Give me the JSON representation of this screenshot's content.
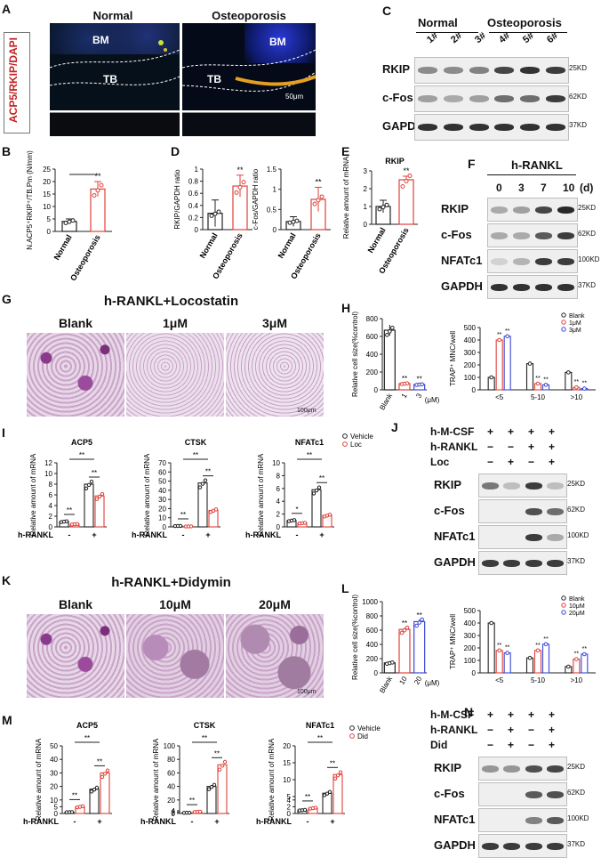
{
  "panel_letters": [
    "A",
    "B",
    "C",
    "D",
    "E",
    "F",
    "G",
    "H",
    "I",
    "J",
    "K",
    "L",
    "M",
    "N"
  ],
  "A": {
    "side_label": "ACP5/RKIP/DAPI",
    "normal": "Normal",
    "osteo": "Osteoporosis",
    "bm": "BM",
    "tb": "TB",
    "scale": "50μm"
  },
  "B": {
    "ylabel": "N.ACP5⁺RKIP⁺/TB.Pm (N/mm)"
  },
  "C": {
    "normal": "Normal",
    "osteo": "Osteoporosis",
    "lanes": [
      "1#",
      "2#",
      "3#",
      "4#",
      "5#",
      "6#"
    ],
    "rows": [
      "RKIP",
      "c-Fos",
      "GAPDH"
    ],
    "kd": [
      "25KD",
      "62KD",
      "37KD"
    ]
  },
  "D": {
    "ylabel1": "RKIP/GAPDH ratio",
    "ylabel2": "c-Fos/GAPDH ratio"
  },
  "E": {
    "title": "RKIP",
    "ylabel": "Relative amount of mRNA"
  },
  "F": {
    "header": "h-RANKL",
    "lanes": [
      "0",
      "3",
      "7",
      "10"
    ],
    "unit": "(d)",
    "rows": [
      "RKIP",
      "c-Fos",
      "NFATc1",
      "GAPDH"
    ],
    "kd": [
      "25KD",
      "62KD",
      "100KD",
      "37KD"
    ]
  },
  "G": {
    "title": "h-RANKL+Locostatin",
    "labels": [
      "Blank",
      "1μM",
      "3μM"
    ],
    "scale": "100μm"
  },
  "H": {
    "ylabel1": "Relative cell size(%control)",
    "ylabel2": "TRAP⁺ MNC/well",
    "unit": "(μM)",
    "legend": [
      "Blank",
      "1μM",
      "3μM"
    ]
  },
  "I": {
    "legend": [
      "Vehicle",
      "Loc"
    ],
    "xrow": "h-RANKL",
    "ylabel": "Relative amount of mRNA"
  },
  "J": {
    "rows_top": [
      "h-M-CSF",
      "h-RANKL",
      "Loc"
    ],
    "signs": [
      [
        "+",
        "+",
        "+",
        "+"
      ],
      [
        "−",
        "−",
        "+",
        "+"
      ],
      [
        "−",
        "+",
        "−",
        "+"
      ]
    ],
    "rows": [
      "RKIP",
      "c-Fos",
      "NFATc1",
      "GAPDH"
    ],
    "kd": [
      "25KD",
      "62KD",
      "100KD",
      "37KD"
    ]
  },
  "K": {
    "title": "h-RANKL+Didymin",
    "labels": [
      "Blank",
      "10μM",
      "20μM"
    ],
    "scale": "100μm"
  },
  "L": {
    "ylabel1": "Relative cell size(%control)",
    "ylabel2": "TRAP⁺ MNC/well",
    "unit": "(μM)",
    "legend": [
      "Blank",
      "10μM",
      "20μM"
    ]
  },
  "M": {
    "legend": [
      "Vehicle",
      "Did"
    ],
    "xrow": "h-RANKL",
    "ylabel": "Relative amount of mRNA"
  },
  "N": {
    "rows_top": [
      "h-M-CSF",
      "h-RANKL",
      "Did"
    ],
    "signs": [
      [
        "+",
        "+",
        "+",
        "+"
      ],
      [
        "−",
        "+",
        "−",
        "+"
      ],
      [
        "−",
        "+",
        "−",
        "+"
      ]
    ],
    "rows": [
      "RKIP",
      "c-Fos",
      "NFATc1",
      "GAPDH"
    ],
    "kd": [
      "25KD",
      "62KD",
      "100KD",
      "37KD"
    ]
  },
  "colors": {
    "black": "#222222",
    "red": "#e0413a",
    "blue": "#3a46d8",
    "blank_bar": "#ffffff"
  },
  "chart_data": [
    {
      "id": "B",
      "type": "bar",
      "categories": [
        "Normal",
        "Osteoporosis"
      ],
      "values": [
        4,
        17
      ],
      "errors": [
        1,
        3
      ],
      "ylim": [
        0,
        25
      ],
      "yticks": [
        0,
        5,
        10,
        15,
        20,
        25
      ],
      "sig": "**",
      "ylabel": "N.ACP5⁺RKIP⁺/TB.Pm (N/mm)"
    },
    {
      "id": "D1",
      "type": "bar",
      "categories": [
        "Normal",
        "Osteoporosis"
      ],
      "values": [
        0.27,
        0.72
      ],
      "errors": [
        0.22,
        0.18
      ],
      "ylim": [
        0,
        1.0
      ],
      "yticks": [
        0.0,
        0.2,
        0.4,
        0.6,
        0.8,
        1.0
      ],
      "sig": "**",
      "ylabel": "RKIP/GAPDH ratio"
    },
    {
      "id": "D2",
      "type": "bar",
      "categories": [
        "Normal",
        "Osteoporosis"
      ],
      "values": [
        0.2,
        0.75
      ],
      "errors": [
        0.12,
        0.3
      ],
      "ylim": [
        0,
        1.5
      ],
      "yticks": [
        0.0,
        0.5,
        1.0,
        1.5
      ],
      "sig": "**",
      "ylabel": "c-Fos/GAPDH ratio"
    },
    {
      "id": "E",
      "type": "bar",
      "categories": [
        "Normal",
        "Osteoporosis"
      ],
      "values": [
        1.0,
        2.5
      ],
      "errors": [
        0.35,
        0.2
      ],
      "ylim": [
        0,
        3
      ],
      "yticks": [
        0,
        1,
        2,
        3
      ],
      "sig": "**",
      "title": "RKIP",
      "ylabel": "Relative amount of mRNA"
    },
    {
      "id": "H1",
      "type": "bar",
      "categories": [
        "Blank",
        "1",
        "3"
      ],
      "values": [
        670,
        70,
        60
      ],
      "errors": [
        60,
        10,
        15
      ],
      "ylim": [
        0,
        800
      ],
      "yticks": [
        0,
        200,
        400,
        600,
        800
      ],
      "sig": [
        "",
        "**",
        "**"
      ],
      "colors": [
        "#222222",
        "#e0413a",
        "#3a46d8"
      ],
      "ylabel": "Relative cell size(%control)",
      "unit": "(μM)"
    },
    {
      "id": "H2",
      "type": "bar",
      "categories": [
        "<5",
        "5-10",
        ">10"
      ],
      "series": [
        {
          "name": "Blank",
          "values": [
            100,
            210,
            140
          ]
        },
        {
          "name": "1μM",
          "values": [
            400,
            50,
            20
          ]
        },
        {
          "name": "3μM",
          "values": [
            430,
            40,
            10
          ]
        }
      ],
      "ylim": [
        0,
        500
      ],
      "yticks": [
        0,
        100,
        200,
        300,
        400,
        500
      ],
      "sig": [
        [
          "",
          "**",
          "**"
        ],
        [
          "",
          "**",
          "**"
        ],
        [
          "",
          "**",
          "**"
        ]
      ],
      "ylabel": "TRAP⁺ MNC/well"
    },
    {
      "id": "I1",
      "type": "bar",
      "title": "ACP5",
      "categories": [
        "-",
        "+"
      ],
      "series": [
        {
          "name": "Vehicle",
          "values": [
            1,
            8
          ]
        },
        {
          "name": "Loc",
          "values": [
            0.5,
            5.8
          ]
        }
      ],
      "ylim": [
        0,
        12
      ],
      "yticks": [
        0,
        2,
        4,
        6,
        8,
        10,
        12
      ],
      "sig": "**",
      "xrow": "h-RANKL"
    },
    {
      "id": "I2",
      "type": "bar",
      "title": "CTSK",
      "categories": [
        "-",
        "+"
      ],
      "series": [
        {
          "name": "Vehicle",
          "values": [
            1,
            48
          ]
        },
        {
          "name": "Loc",
          "values": [
            0.5,
            18
          ]
        }
      ],
      "ylim": [
        0,
        70
      ],
      "yticks": [
        0,
        10,
        20,
        30,
        40,
        50,
        60,
        70
      ],
      "sig": "**",
      "xrow": "h-RANKL"
    },
    {
      "id": "I3",
      "type": "bar",
      "title": "NFATc1",
      "categories": [
        "-",
        "+"
      ],
      "series": [
        {
          "name": "Vehicle",
          "values": [
            1,
            5.8
          ]
        },
        {
          "name": "Loc",
          "values": [
            0.6,
            1.8
          ]
        }
      ],
      "ylim": [
        0,
        10
      ],
      "yticks": [
        0,
        2,
        4,
        6,
        8,
        10
      ],
      "sig": [
        "*",
        "**"
      ],
      "xrow": "h-RANKL"
    },
    {
      "id": "L1",
      "type": "bar",
      "categories": [
        "Blank",
        "10",
        "20"
      ],
      "values": [
        140,
        610,
        720
      ],
      "errors": [
        20,
        25,
        30
      ],
      "ylim": [
        0,
        1000
      ],
      "yticks": [
        0,
        200,
        400,
        600,
        800,
        1000
      ],
      "sig": [
        "",
        "**",
        "**"
      ],
      "colors": [
        "#222222",
        "#e0413a",
        "#3a46d8"
      ],
      "ylabel": "Relative cell size(%control)",
      "unit": "(μM)"
    },
    {
      "id": "L2",
      "type": "bar",
      "categories": [
        "<5",
        "5-10",
        ">10"
      ],
      "series": [
        {
          "name": "Blank",
          "values": [
            400,
            120,
            50
          ]
        },
        {
          "name": "10μM",
          "values": [
            180,
            180,
            110
          ]
        },
        {
          "name": "20μM",
          "values": [
            160,
            230,
            150
          ]
        }
      ],
      "ylim": [
        0,
        500
      ],
      "yticks": [
        0,
        100,
        200,
        300,
        400,
        500
      ],
      "sig": [
        [
          "",
          "**",
          "**"
        ],
        [
          "",
          "**",
          "**"
        ],
        [
          "",
          "**",
          "**"
        ]
      ],
      "ylabel": "TRAP⁺ MNC/well"
    },
    {
      "id": "M1",
      "type": "bar",
      "title": "ACP5",
      "categories": [
        "-",
        "+"
      ],
      "series": [
        {
          "name": "Vehicle",
          "values": [
            1,
            18
          ]
        },
        {
          "name": "Did",
          "values": [
            5,
            30
          ]
        }
      ],
      "ylim": [
        0,
        50
      ],
      "yticks": [
        0,
        5,
        10,
        20,
        30,
        40,
        50
      ],
      "sig": "**",
      "xrow": "h-RANKL"
    },
    {
      "id": "M2",
      "type": "bar",
      "title": "CTSK",
      "categories": [
        "-",
        "+"
      ],
      "series": [
        {
          "name": "Vehicle",
          "values": [
            1,
            40
          ]
        },
        {
          "name": "Did",
          "values": [
            2.5,
            72
          ]
        }
      ],
      "ylim": [
        0,
        100
      ],
      "yticks": [
        0,
        2,
        4,
        20,
        40,
        60,
        80,
        100
      ],
      "sig": "**",
      "xrow": "h-RANKL"
    },
    {
      "id": "M3",
      "type": "bar",
      "title": "NFATc1",
      "categories": [
        "-",
        "+"
      ],
      "series": [
        {
          "name": "Vehicle",
          "values": [
            1,
            6
          ]
        },
        {
          "name": "Did",
          "values": [
            1.6,
            11.5
          ]
        }
      ],
      "ylim": [
        0,
        20
      ],
      "yticks": [
        0,
        2,
        4,
        5,
        10,
        15,
        20
      ],
      "sig": "**",
      "xrow": "h-RANKL"
    }
  ]
}
